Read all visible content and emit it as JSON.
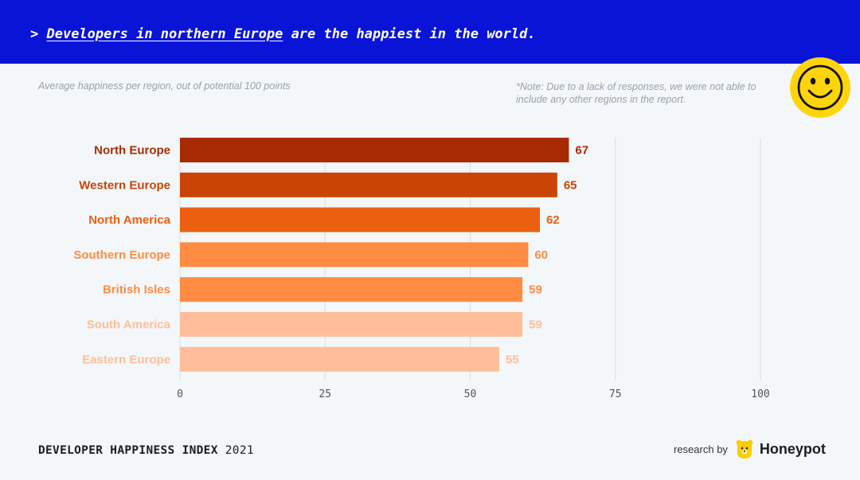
{
  "header": {
    "prefix": ">",
    "highlight": "Developers in northern Europe",
    "rest": "are the happiest in the world."
  },
  "subtitle": "Average happiness per region, out of potential 100 points",
  "note": "*Note: Due to a lack of responses, we were not able to include any other regions in the report.",
  "footer": {
    "index_title": "DEVELOPER HAPPINESS INDEX",
    "year": "2021",
    "research_by": "research by",
    "brand": "Honeypot"
  },
  "icons": {
    "smiley": "smiley-face-icon",
    "brand_logo": "honeypot-bear-icon"
  },
  "colors": {
    "banner": "#0a14d6",
    "smiley": "#ffd40a",
    "grid": "#d9dde1"
  },
  "chart_data": {
    "type": "bar",
    "orientation": "horizontal",
    "title": "Developers in northern Europe are the happiest in the world.",
    "xlabel": "",
    "ylabel": "",
    "xlim": [
      0,
      100
    ],
    "xticks": [
      0,
      25,
      50,
      75,
      100
    ],
    "grid": true,
    "categories": [
      "North Europe",
      "Western Europe",
      "North America",
      "Southern Europe",
      "British Isles",
      "South America",
      "Eastern Europe"
    ],
    "values": [
      67,
      65,
      62,
      60,
      59,
      59,
      55
    ],
    "bar_colors": [
      "#a82a02",
      "#c94405",
      "#ea6010",
      "#ff8c42",
      "#ff8c42",
      "#ffbe99",
      "#ffbe99"
    ]
  }
}
